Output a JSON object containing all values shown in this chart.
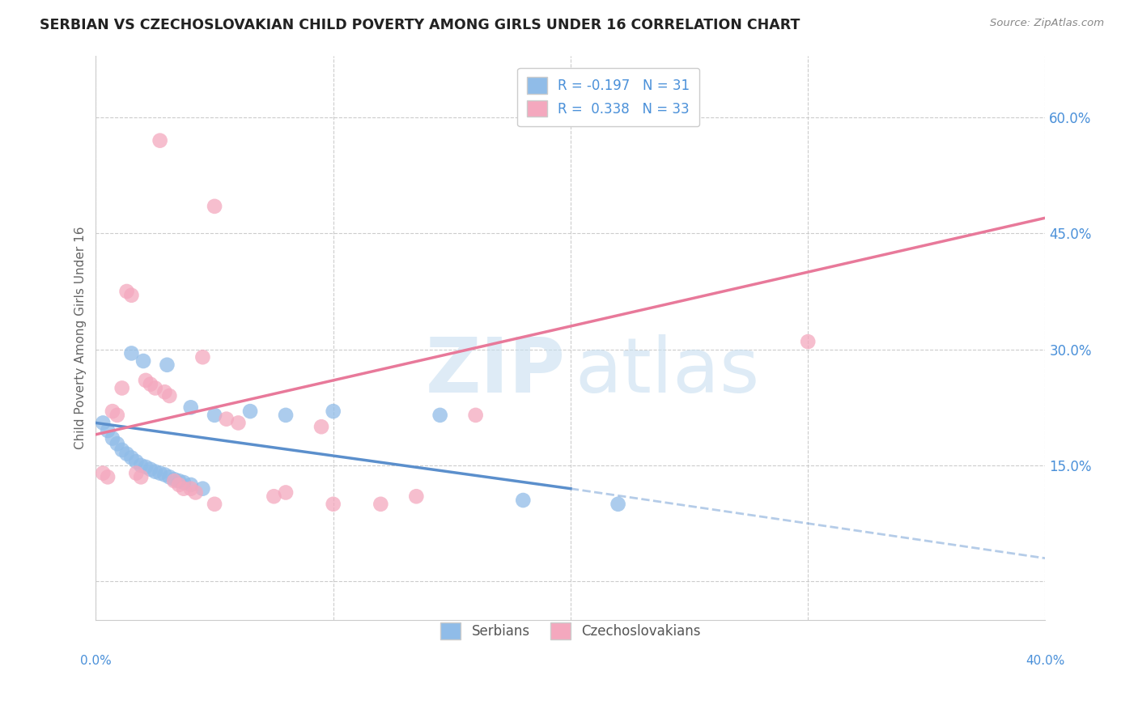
{
  "title": "SERBIAN VS CZECHOSLOVAKIAN CHILD POVERTY AMONG GIRLS UNDER 16 CORRELATION CHART",
  "source": "Source: ZipAtlas.com",
  "ylabel": "Child Poverty Among Girls Under 16",
  "watermark_zip": "ZIP",
  "watermark_atlas": "atlas",
  "serbian_R": -0.197,
  "serbian_N": 31,
  "czech_R": 0.338,
  "czech_N": 33,
  "xlim": [
    0.0,
    40.0
  ],
  "ylim": [
    -5.0,
    68.0
  ],
  "yticks": [
    0,
    15,
    30,
    45,
    60
  ],
  "ytick_labels": [
    "",
    "15.0%",
    "30.0%",
    "45.0%",
    "60.0%"
  ],
  "serbian_color": "#90BCE8",
  "czech_color": "#F4A8BE",
  "serbian_line_color": "#5B8FCC",
  "czech_line_color": "#E8799A",
  "background_color": "#FFFFFF",
  "grid_color": "#CCCCCC",
  "serbian_line_x0": 0.0,
  "serbian_line_y0": 20.5,
  "serbian_line_x1": 20.0,
  "serbian_line_y1": 12.0,
  "serbian_line_x2": 40.0,
  "serbian_line_y2": 3.0,
  "czech_line_x0": 0.0,
  "czech_line_y0": 19.0,
  "czech_line_x1": 40.0,
  "czech_line_y1": 47.0,
  "serbian_solid_end": 20.0,
  "serbian_dots": [
    [
      0.3,
      20.5
    ],
    [
      0.5,
      19.5
    ],
    [
      0.7,
      18.5
    ],
    [
      0.9,
      17.8
    ],
    [
      1.1,
      17.0
    ],
    [
      1.3,
      16.5
    ],
    [
      1.5,
      16.0
    ],
    [
      1.7,
      15.5
    ],
    [
      1.9,
      15.0
    ],
    [
      2.1,
      14.8
    ],
    [
      2.3,
      14.5
    ],
    [
      2.5,
      14.2
    ],
    [
      2.7,
      14.0
    ],
    [
      2.9,
      13.8
    ],
    [
      3.1,
      13.5
    ],
    [
      3.3,
      13.2
    ],
    [
      3.5,
      13.0
    ],
    [
      3.7,
      12.8
    ],
    [
      4.0,
      12.5
    ],
    [
      4.5,
      12.0
    ],
    [
      1.5,
      29.5
    ],
    [
      2.0,
      28.5
    ],
    [
      3.0,
      28.0
    ],
    [
      4.0,
      22.5
    ],
    [
      5.0,
      21.5
    ],
    [
      6.5,
      22.0
    ],
    [
      8.0,
      21.5
    ],
    [
      10.0,
      22.0
    ],
    [
      14.5,
      21.5
    ],
    [
      18.0,
      10.5
    ],
    [
      22.0,
      10.0
    ]
  ],
  "czech_dots": [
    [
      0.3,
      14.0
    ],
    [
      0.5,
      13.5
    ],
    [
      0.7,
      22.0
    ],
    [
      0.9,
      21.5
    ],
    [
      1.1,
      25.0
    ],
    [
      1.3,
      37.5
    ],
    [
      1.5,
      37.0
    ],
    [
      1.7,
      14.0
    ],
    [
      1.9,
      13.5
    ],
    [
      2.1,
      26.0
    ],
    [
      2.3,
      25.5
    ],
    [
      2.5,
      25.0
    ],
    [
      2.7,
      57.0
    ],
    [
      2.9,
      24.5
    ],
    [
      3.1,
      24.0
    ],
    [
      3.3,
      13.0
    ],
    [
      3.5,
      12.5
    ],
    [
      3.7,
      12.0
    ],
    [
      4.0,
      12.0
    ],
    [
      4.2,
      11.5
    ],
    [
      4.5,
      29.0
    ],
    [
      5.0,
      48.5
    ],
    [
      5.5,
      21.0
    ],
    [
      6.0,
      20.5
    ],
    [
      7.5,
      11.0
    ],
    [
      8.0,
      11.5
    ],
    [
      9.5,
      20.0
    ],
    [
      12.0,
      10.0
    ],
    [
      13.5,
      11.0
    ],
    [
      16.0,
      21.5
    ],
    [
      30.0,
      31.0
    ],
    [
      5.0,
      10.0
    ],
    [
      10.0,
      10.0
    ]
  ]
}
